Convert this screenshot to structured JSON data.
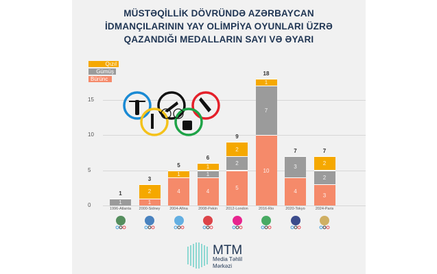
{
  "title": {
    "lines": [
      "MÜSTƏQİLLİK DÖVRÜNDƏ AZƏRBAYCAN",
      "İDMANÇILARININ YAY OLİMPİYA OYUNLARI ÜZRƏ",
      "QAZANDIĞI MEDALLARIN SAYI VƏ ƏYARI"
    ]
  },
  "legend": {
    "gold": "Qızıl",
    "silver": "Gümüş",
    "bronze": "Bürünc"
  },
  "colors": {
    "gold": "#f5a800",
    "silver": "#9b9b9b",
    "bronze": "#f58a6a",
    "title": "#1f3553",
    "brand": "#2bbfb3"
  },
  "yticks": [
    "0",
    "5",
    "10",
    "15"
  ],
  "branding": {
    "name": "MTM",
    "sub1": "Media Təhlil",
    "sub2": "Mərkəzi"
  },
  "chart_data": {
    "type": "bar",
    "stacked": true,
    "title": "Müstəqillik dövründə Azərbaycan idmançılarının Yay Olimpiya oyunları üzrə qazandığı medalların sayı və əyarı",
    "xlabel": "",
    "ylabel": "",
    "ylim": [
      0,
      18
    ],
    "grid": true,
    "legend_position": "top-left",
    "categories": [
      "1996-Atlanta",
      "2000-Sidney",
      "2004-Afina",
      "2008-Pekin",
      "2012-London",
      "2016-Rio",
      "2020-Tokyo",
      "2024-Paris"
    ],
    "series": [
      {
        "name": "Bürünc",
        "values": [
          0,
          1,
          4,
          4,
          5,
          10,
          4,
          3
        ]
      },
      {
        "name": "Gümüş",
        "values": [
          1,
          0,
          0,
          1,
          2,
          7,
          3,
          2
        ]
      },
      {
        "name": "Qızıl",
        "values": [
          0,
          2,
          1,
          1,
          2,
          1,
          0,
          2
        ]
      }
    ],
    "totals": [
      1,
      3,
      5,
      6,
      9,
      18,
      7,
      7
    ]
  }
}
